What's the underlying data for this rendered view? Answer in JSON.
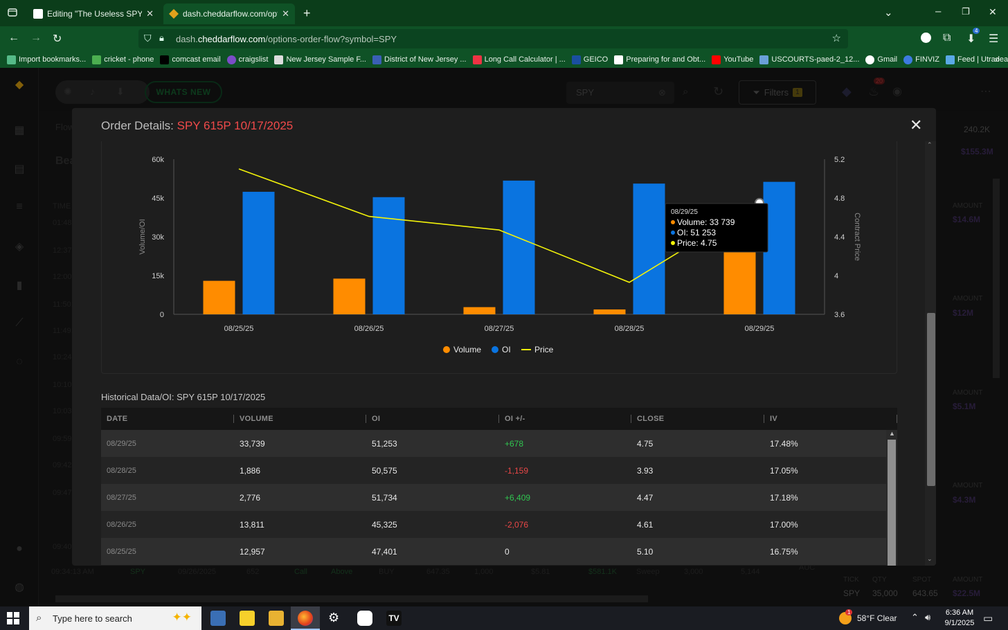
{
  "browser": {
    "tabs": [
      {
        "title": "Editing \"The Useless SPY Review",
        "active": false
      },
      {
        "title": "dash.cheddarflow.com/options-",
        "active": true
      }
    ],
    "url_host": "dash.cheddarflow.com",
    "url_path": "/options-order-flow?symbol=SPY",
    "url_prefix": "dash.",
    "url_domain": "cheddarflow.com",
    "extensions_badge": "4",
    "bookmarks": [
      "Import bookmarks...",
      "cricket - phone",
      "comcast email",
      "craigslist",
      "New Jersey Sample F...",
      "District of New Jersey ...",
      "Long Call Calculator | ...",
      "GEICO",
      "Preparing for and Obt...",
      "YouTube",
      "USCOURTS-paed-2_12...",
      "Gmail",
      "FINVIZ",
      "Feed | Utradea"
    ]
  },
  "app": {
    "whats_new": "WHATS NEW",
    "search_value": "SPY",
    "filters_label": "Filters",
    "filters_count": "1",
    "notif_count": "20",
    "bg_flow_label": "Flow",
    "bg_bea": "Bea",
    "bg_time_header": "TIME",
    "bg_times": [
      "01:48:",
      "12:37:",
      "12:00:",
      "11:50:",
      "11:49:",
      "10:24:",
      "10:10:",
      "10:03:",
      "09:59:",
      "09:42:",
      "09:47:",
      "09:40:"
    ],
    "bg_right": {
      "top_value": "240.2K",
      "top_amount": "$155.3M",
      "amount_label": "AMOUNT",
      "amounts": [
        "$14.6M",
        "$12M",
        "$5.1M",
        "$4.3M",
        "$22.5M"
      ],
      "tick_label": "TICK",
      "qty_label": "QTY",
      "spot_label": "SPOT",
      "bottom_tick": "SPY",
      "bottom_qty": "35,000",
      "bottom_spot": "643.65"
    },
    "bg_bottom_row": [
      "09:34:13 AM",
      "SPY",
      "09/26/2025",
      "652",
      "Call",
      "Above",
      "BUY",
      "647.35",
      "1,000",
      "$5.81",
      "$581.1K",
      "Sweep",
      "3,000",
      "5,144"
    ],
    "bg_auc": "AUC"
  },
  "modal": {
    "title_prefix": "Order Details:",
    "title_symbol": "SPY 615P 10/17/2025",
    "close": "✕",
    "hist_title": "Historical Data/OI: SPY 615P 10/17/2025",
    "columns": [
      "DATE",
      "VOLUME",
      "OI",
      "OI +/-",
      "CLOSE",
      "IV"
    ],
    "rows": [
      {
        "date": "08/29/25",
        "volume": "33,739",
        "oi": "51,253",
        "oi_change": "+678",
        "close": "4.75",
        "iv": "17.48%",
        "dir": "pos"
      },
      {
        "date": "08/28/25",
        "volume": "1,886",
        "oi": "50,575",
        "oi_change": "-1,159",
        "close": "3.93",
        "iv": "17.05%",
        "dir": "neg"
      },
      {
        "date": "08/27/25",
        "volume": "2,776",
        "oi": "51,734",
        "oi_change": "+6,409",
        "close": "4.47",
        "iv": "17.18%",
        "dir": "pos"
      },
      {
        "date": "08/26/25",
        "volume": "13,811",
        "oi": "45,325",
        "oi_change": "-2,076",
        "close": "4.61",
        "iv": "17.00%",
        "dir": "neg"
      },
      {
        "date": "08/25/25",
        "volume": "12,957",
        "oi": "47,401",
        "oi_change": "0",
        "close": "5.10",
        "iv": "16.75%",
        "dir": "none"
      }
    ]
  },
  "chart_data": {
    "type": "bar",
    "categories": [
      "08/25/25",
      "08/26/25",
      "08/27/25",
      "08/28/25",
      "08/29/25"
    ],
    "series": [
      {
        "name": "Volume",
        "type": "bar",
        "axis": "left",
        "color": "#ff8c00",
        "values": [
          12957,
          13811,
          2776,
          1886,
          33739
        ]
      },
      {
        "name": "OI",
        "type": "bar",
        "axis": "left",
        "color": "#0a74e0",
        "values": [
          47401,
          45325,
          51734,
          50575,
          51253
        ]
      },
      {
        "name": "Price",
        "type": "line",
        "axis": "right",
        "color": "#f2f20a",
        "values": [
          5.1,
          4.61,
          4.47,
          3.93,
          4.75
        ]
      }
    ],
    "ylabel": "Volume/OI",
    "y2label": "Contract Price",
    "ylim": [
      0,
      60000
    ],
    "y2lim": [
      3.6,
      5.2
    ],
    "yticks": [
      "0",
      "15k",
      "30k",
      "45k",
      "60k"
    ],
    "y2ticks": [
      "3.6",
      "4",
      "4.4",
      "4.8",
      "5.2"
    ],
    "legend_position": "bottom",
    "tooltip": {
      "date": "08/29/25",
      "volume_line": "Volume: 33 739",
      "oi_line": "OI: 51 253",
      "price_line": "Price: 4.75"
    }
  },
  "taskbar": {
    "search_placeholder": "Type here to search",
    "weather": "58°F  Clear",
    "time": "6:36 AM",
    "date": "9/1/2025",
    "weather_badge": "1"
  }
}
